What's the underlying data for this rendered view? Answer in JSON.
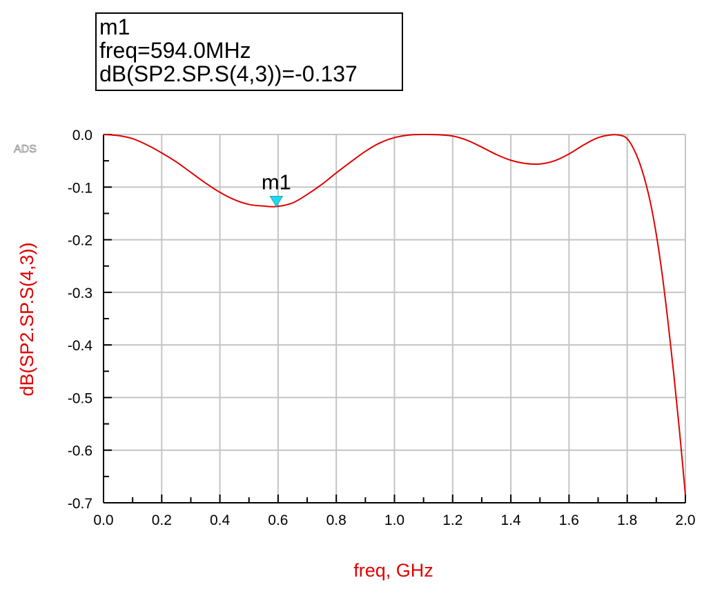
{
  "marker_readout": {
    "name": "m1",
    "freq_line": "freq=594.0MHz",
    "value_line": "dB(SP2.SP.S(4,3))=-0.137"
  },
  "watermark": "ADS",
  "chart_data": {
    "type": "line",
    "xlabel": "freq, GHz",
    "ylabel": "dB(SP2.SP.S(4,3))",
    "xlim": [
      0.0,
      2.0
    ],
    "ylim": [
      -0.7,
      0.0
    ],
    "xticks": [
      "0.0",
      "0.2",
      "0.4",
      "0.6",
      "0.8",
      "1.0",
      "1.2",
      "1.4",
      "1.6",
      "1.8",
      "2.0"
    ],
    "yticks": [
      "0.0",
      "-0.1",
      "-0.2",
      "-0.3",
      "-0.4",
      "-0.5",
      "-0.6",
      "-0.7"
    ],
    "grid": true,
    "series": [
      {
        "color": "#e00000",
        "x": [
          0.0,
          0.05,
          0.1,
          0.15,
          0.2,
          0.25,
          0.3,
          0.35,
          0.4,
          0.45,
          0.5,
          0.55,
          0.594,
          0.65,
          0.7,
          0.75,
          0.8,
          0.85,
          0.9,
          0.95,
          1.0,
          1.05,
          1.1,
          1.15,
          1.2,
          1.25,
          1.3,
          1.35,
          1.4,
          1.45,
          1.5,
          1.55,
          1.6,
          1.65,
          1.7,
          1.75,
          1.78,
          1.8,
          1.82,
          1.84,
          1.86,
          1.88,
          1.9,
          1.92,
          1.94,
          1.96,
          1.98,
          2.0
        ],
        "values": [
          0.0,
          -0.002,
          -0.008,
          -0.02,
          -0.035,
          -0.052,
          -0.072,
          -0.092,
          -0.11,
          -0.124,
          -0.133,
          -0.136,
          -0.137,
          -0.13,
          -0.114,
          -0.095,
          -0.073,
          -0.052,
          -0.032,
          -0.016,
          -0.006,
          -0.001,
          0.0,
          -0.0005,
          -0.003,
          -0.011,
          -0.024,
          -0.038,
          -0.049,
          -0.055,
          -0.056,
          -0.05,
          -0.037,
          -0.02,
          -0.006,
          -0.0005,
          -0.002,
          -0.008,
          -0.025,
          -0.05,
          -0.085,
          -0.13,
          -0.19,
          -0.265,
          -0.355,
          -0.455,
          -0.565,
          -0.685
        ]
      }
    ],
    "markers": [
      {
        "label": "m1",
        "x": 0.594,
        "y": -0.137,
        "color": "#22d8e8"
      }
    ]
  }
}
